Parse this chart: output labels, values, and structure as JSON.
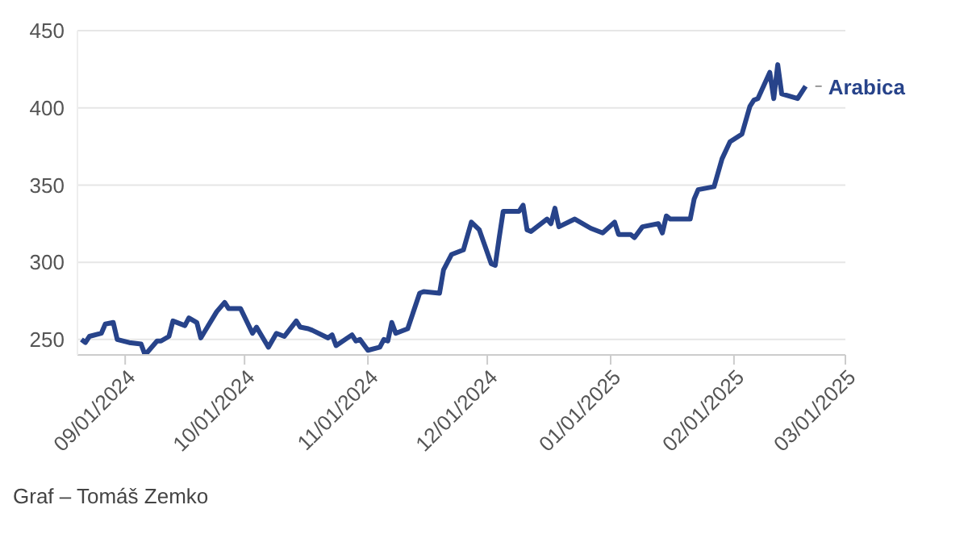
{
  "chart_data": {
    "type": "line",
    "x": [
      "2024-08-21",
      "2024-08-22",
      "2024-08-23",
      "2024-08-26",
      "2024-08-27",
      "2024-08-29",
      "2024-08-30",
      "2024-09-02",
      "2024-09-05",
      "2024-09-06",
      "2024-09-09",
      "2024-09-10",
      "2024-09-12",
      "2024-09-13",
      "2024-09-16",
      "2024-09-17",
      "2024-09-19",
      "2024-09-20",
      "2024-09-24",
      "2024-09-26",
      "2024-09-27",
      "2024-09-30",
      "2024-10-03",
      "2024-10-04",
      "2024-10-07",
      "2024-10-09",
      "2024-10-11",
      "2024-10-14",
      "2024-10-15",
      "2024-10-17",
      "2024-10-18",
      "2024-10-22",
      "2024-10-23",
      "2024-10-24",
      "2024-10-28",
      "2024-10-29",
      "2024-10-30",
      "2024-11-01",
      "2024-11-04",
      "2024-11-05",
      "2024-11-06",
      "2024-11-07",
      "2024-11-08",
      "2024-11-11",
      "2024-11-14",
      "2024-11-15",
      "2024-11-19",
      "2024-11-20",
      "2024-11-22",
      "2024-11-25",
      "2024-11-27",
      "2024-11-29",
      "2024-12-02",
      "2024-12-03",
      "2024-12-04",
      "2024-12-05",
      "2024-12-09",
      "2024-12-10",
      "2024-12-11",
      "2024-12-12",
      "2024-12-16",
      "2024-12-17",
      "2024-12-18",
      "2024-12-19",
      "2024-12-23",
      "2024-12-27",
      "2024-12-30",
      "2025-01-02",
      "2025-01-03",
      "2025-01-06",
      "2025-01-07",
      "2025-01-09",
      "2025-01-13",
      "2025-01-14",
      "2025-01-15",
      "2025-01-16",
      "2025-01-21",
      "2025-01-22",
      "2025-01-23",
      "2025-01-27",
      "2025-01-29",
      "2025-01-31",
      "2025-02-03",
      "2025-02-05",
      "2025-02-06",
      "2025-02-07",
      "2025-02-10",
      "2025-02-11",
      "2025-02-12",
      "2025-02-13",
      "2025-02-17",
      "2025-02-19"
    ],
    "series": [
      {
        "name": "Arabica",
        "color": "#27438a",
        "values": [
          250,
          248,
          252,
          254,
          260,
          261,
          250,
          248,
          247,
          240,
          249,
          249,
          252,
          262,
          259,
          264,
          261,
          251,
          268,
          274,
          270,
          270,
          254,
          258,
          245,
          254,
          252,
          262,
          258,
          257,
          256,
          251,
          253,
          246,
          253,
          249,
          250,
          243,
          245,
          250,
          249,
          261,
          254,
          257,
          280,
          281,
          280,
          295,
          305,
          308,
          326,
          321,
          299,
          298,
          316,
          333,
          333,
          337,
          321,
          320,
          328,
          325,
          335,
          323,
          328,
          322,
          319,
          326,
          318,
          318,
          316,
          323,
          325,
          319,
          330,
          328,
          328,
          341,
          347,
          349,
          367,
          378,
          383,
          401,
          405,
          406,
          423,
          406,
          428,
          409,
          406,
          414
        ]
      }
    ],
    "xlim": [
      "2024-08-20",
      "2025-03-01"
    ],
    "xticks": [
      {
        "value": "2024-09-01",
        "label": "09/01/2024"
      },
      {
        "value": "2024-10-01",
        "label": "10/01/2024"
      },
      {
        "value": "2024-11-01",
        "label": "11/01/2024"
      },
      {
        "value": "2024-12-01",
        "label": "12/01/2024"
      },
      {
        "value": "2025-01-01",
        "label": "01/01/2025"
      },
      {
        "value": "2025-02-01",
        "label": "02/01/2025"
      },
      {
        "value": "2025-03-01",
        "label": "03/01/2025"
      }
    ],
    "ylim": [
      240,
      450
    ],
    "yticks": [
      250,
      300,
      350,
      400,
      450
    ],
    "grid": "y",
    "legend": false,
    "marker": "none",
    "line_style": "solid",
    "annotations": [
      "Graf – Tomáš Zemko"
    ]
  }
}
